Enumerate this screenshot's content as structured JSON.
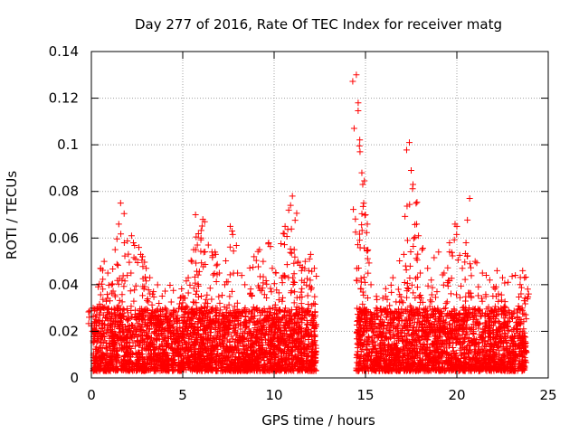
{
  "chart_data": {
    "type": "scatter",
    "title": "Day 277 of 2016, Rate Of TEC Index for receiver matg",
    "xlabel": "GPS time / hours",
    "ylabel": "ROTI / TECUs",
    "xlim": [
      0,
      25
    ],
    "ylim": [
      0,
      0.14
    ],
    "xticks": [
      0,
      5,
      10,
      15,
      20,
      25
    ],
    "xtick_labels": [
      "0",
      "5",
      "10",
      "15",
      "20",
      "25"
    ],
    "yticks": [
      0,
      0.02,
      0.04,
      0.06,
      0.08,
      0.1,
      0.12,
      0.14
    ],
    "ytick_labels": [
      "0",
      "0.02",
      "0.04",
      "0.06",
      "0.08",
      "0.1",
      "0.12",
      "0.14"
    ],
    "grid": true,
    "marker": "+",
    "color": "#ff0000",
    "data_gap_hours": [
      12.3,
      14.4
    ],
    "series": [
      {
        "name": "ROTI",
        "points": [
          [
            0.1,
            0.03
          ],
          [
            0.3,
            0.02
          ],
          [
            0.5,
            0.047
          ],
          [
            0.7,
            0.05
          ],
          [
            0.9,
            0.045
          ],
          [
            1.1,
            0.04
          ],
          [
            1.3,
            0.055
          ],
          [
            1.5,
            0.066
          ],
          [
            1.6,
            0.075
          ],
          [
            1.8,
            0.058
          ],
          [
            2.2,
            0.061
          ],
          [
            2.3,
            0.058
          ],
          [
            2.6,
            0.056
          ],
          [
            2.7,
            0.053
          ],
          [
            2.8,
            0.052
          ],
          [
            3.0,
            0.047
          ],
          [
            3.2,
            0.043
          ],
          [
            3.4,
            0.037
          ],
          [
            3.7,
            0.032
          ],
          [
            4.1,
            0.025
          ],
          [
            4.5,
            0.026
          ],
          [
            5.0,
            0.035
          ],
          [
            5.3,
            0.043
          ],
          [
            5.5,
            0.05
          ],
          [
            5.6,
            0.055
          ],
          [
            5.7,
            0.07
          ],
          [
            5.8,
            0.057
          ],
          [
            6.0,
            0.06
          ],
          [
            6.1,
            0.068
          ],
          [
            6.2,
            0.067
          ],
          [
            6.4,
            0.057
          ],
          [
            6.6,
            0.054
          ],
          [
            6.8,
            0.053
          ],
          [
            7.0,
            0.045
          ],
          [
            7.3,
            0.04
          ],
          [
            7.6,
            0.065
          ],
          [
            7.7,
            0.063
          ],
          [
            8.0,
            0.045
          ],
          [
            8.4,
            0.04
          ],
          [
            8.9,
            0.052
          ],
          [
            9.2,
            0.055
          ],
          [
            9.4,
            0.05
          ],
          [
            9.7,
            0.058
          ],
          [
            9.9,
            0.047
          ],
          [
            10.1,
            0.045
          ],
          [
            10.5,
            0.062
          ],
          [
            10.6,
            0.065
          ],
          [
            10.8,
            0.072
          ],
          [
            10.9,
            0.074
          ],
          [
            11.0,
            0.078
          ],
          [
            11.1,
            0.055
          ],
          [
            11.3,
            0.05
          ],
          [
            11.5,
            0.046
          ],
          [
            11.7,
            0.05
          ],
          [
            11.9,
            0.046
          ],
          [
            12.0,
            0.053
          ],
          [
            12.2,
            0.047
          ],
          [
            14.5,
            0.13
          ],
          [
            14.6,
            0.118
          ],
          [
            14.7,
            0.097
          ],
          [
            14.8,
            0.088
          ],
          [
            14.85,
            0.083
          ],
          [
            14.9,
            0.075
          ],
          [
            15.0,
            0.07
          ],
          [
            15.1,
            0.066
          ],
          [
            15.3,
            0.04
          ],
          [
            15.6,
            0.035
          ],
          [
            16.1,
            0.035
          ],
          [
            16.5,
            0.043
          ],
          [
            16.8,
            0.038
          ],
          [
            17.1,
            0.053
          ],
          [
            17.3,
            0.059
          ],
          [
            17.4,
            0.101
          ],
          [
            17.5,
            0.089
          ],
          [
            17.6,
            0.083
          ],
          [
            17.8,
            0.066
          ],
          [
            17.9,
            0.061
          ],
          [
            18.1,
            0.055
          ],
          [
            18.4,
            0.047
          ],
          [
            18.6,
            0.042
          ],
          [
            19.0,
            0.054
          ],
          [
            19.3,
            0.045
          ],
          [
            19.6,
            0.058
          ],
          [
            19.9,
            0.066
          ],
          [
            20.0,
            0.065
          ],
          [
            20.3,
            0.047
          ],
          [
            20.5,
            0.058
          ],
          [
            20.7,
            0.077
          ],
          [
            21.0,
            0.05
          ],
          [
            21.4,
            0.045
          ],
          [
            21.8,
            0.042
          ],
          [
            22.2,
            0.046
          ],
          [
            22.5,
            0.043
          ],
          [
            22.8,
            0.041
          ],
          [
            23.2,
            0.044
          ],
          [
            23.6,
            0.046
          ],
          [
            23.7,
            0.043
          ]
        ],
        "baseline_band": {
          "x_ranges": [
            [
              0.1,
              12.3
            ],
            [
              14.5,
              23.8
            ]
          ],
          "y_range": [
            0.003,
            0.03
          ]
        }
      }
    ]
  }
}
